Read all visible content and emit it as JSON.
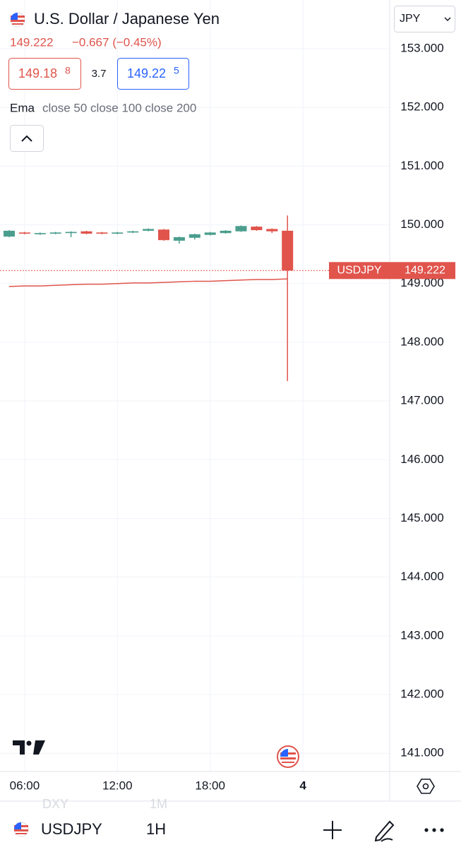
{
  "header": {
    "title": "U.S. Dollar / Japanese Yen",
    "last": "149.222",
    "change": "−0.667 (−0.45%)",
    "bid": {
      "main": "149.18",
      "pip": "8"
    },
    "spread": "3.7",
    "ask": {
      "main": "149.22",
      "pip": "5"
    },
    "indicator": {
      "name": "Ema",
      "params": "close 50 close 100 close 200"
    },
    "currency": "JPY"
  },
  "toolbar": {
    "symbol": "USDJPY",
    "interval": "1H",
    "behind_symbol": "DXY",
    "behind_interval": "1M"
  },
  "chart_data": {
    "type": "candlestick",
    "categories": [
      null,
      "06:00",
      null,
      null,
      null,
      null,
      null,
      "12:00",
      null,
      null,
      null,
      null,
      null,
      "18:00",
      null,
      null,
      null,
      null,
      null,
      "4"
    ],
    "series": [
      {
        "name": "USDJPY",
        "up_color": "#4b9e8e",
        "down_color": "#e0544c",
        "open": [
          149.8,
          149.87,
          149.84,
          149.85,
          149.86,
          149.89,
          149.87,
          149.85,
          149.87,
          149.9,
          149.92,
          149.73,
          149.78,
          149.83,
          149.86,
          149.89,
          149.97,
          149.93,
          149.9,
          null
        ],
        "high": [
          149.91,
          149.88,
          149.87,
          149.88,
          149.89,
          149.9,
          149.88,
          149.88,
          149.9,
          149.94,
          149.93,
          149.8,
          149.85,
          149.88,
          149.91,
          149.99,
          149.98,
          149.94,
          150.16,
          null
        ],
        "low": [
          149.79,
          149.84,
          149.83,
          149.84,
          149.79,
          149.84,
          149.84,
          149.84,
          149.86,
          149.89,
          149.73,
          149.68,
          149.75,
          149.82,
          149.85,
          149.88,
          149.9,
          149.86,
          147.34,
          null
        ],
        "close": [
          149.9,
          149.85,
          149.86,
          149.87,
          149.88,
          149.85,
          149.85,
          149.87,
          149.89,
          149.93,
          149.74,
          149.79,
          149.84,
          149.87,
          149.9,
          149.98,
          149.91,
          149.89,
          149.222,
          null
        ]
      }
    ],
    "ema": {
      "color": "#e0544c",
      "values": [
        148.95,
        148.96,
        148.96,
        148.97,
        148.98,
        148.99,
        148.99,
        149.0,
        149.01,
        149.01,
        149.02,
        149.03,
        149.04,
        149.04,
        149.05,
        149.06,
        149.07,
        149.07,
        149.08,
        null
      ]
    },
    "price_line": {
      "label": "USDJPY",
      "color": "#e0544c"
    },
    "ylim": [
      140.69,
      153.83
    ],
    "yticks": [
      {
        "value": 141,
        "label": "141.000"
      },
      {
        "value": 142,
        "label": "142.000"
      },
      {
        "value": 143,
        "label": "143.000"
      },
      {
        "value": 144,
        "label": "144.000"
      },
      {
        "value": 145,
        "label": "145.000"
      },
      {
        "value": 146,
        "label": "146.000"
      },
      {
        "value": 147,
        "label": "147.000"
      },
      {
        "value": 148,
        "label": "148.000"
      },
      {
        "value": 149,
        "label": "149.000"
      },
      {
        "value": 150,
        "label": "150.000"
      },
      {
        "value": 151,
        "label": "151.000"
      },
      {
        "value": 152,
        "label": "152.000"
      },
      {
        "value": 153,
        "label": "153.000"
      }
    ],
    "grid": true
  }
}
